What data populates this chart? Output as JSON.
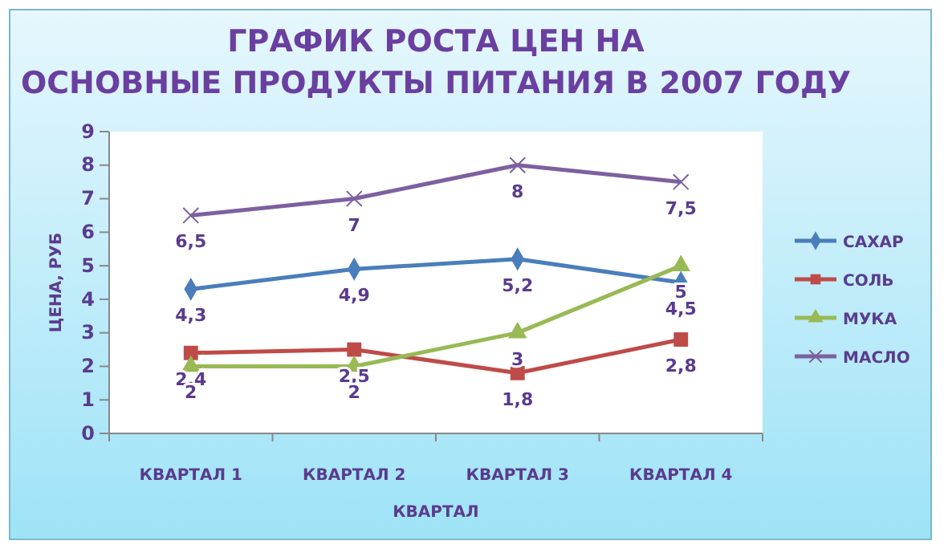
{
  "chart_data": {
    "type": "line",
    "title": "ГРАФИК РОСТА ЦЕН НА ОСНОВНЫЕ ПРОДУКТЫ ПИТАНИЯ В 2007 ГОДУ",
    "xlabel": "КВАРТАЛ",
    "ylabel": "ЦЕНА, РУБ",
    "categories": [
      "КВАРТАЛ 1",
      "КВАРТАЛ 2",
      "КВАРТАЛ 3",
      "КВАРТАЛ 4"
    ],
    "ylim": [
      0,
      9
    ],
    "yticks": [
      0,
      1,
      2,
      3,
      4,
      5,
      6,
      7,
      8,
      9
    ],
    "grid": false,
    "legend": "right",
    "series": [
      {
        "name": "САХАР",
        "color": "#4a7ebb",
        "marker": "diamond",
        "values": [
          4.3,
          4.9,
          5.2,
          4.5
        ],
        "value_labels": [
          "4,3",
          "4,9",
          "5,2",
          "4,5"
        ]
      },
      {
        "name": "СОЛЬ",
        "color": "#be4b48",
        "marker": "square",
        "values": [
          2.4,
          2.5,
          1.8,
          2.8
        ],
        "value_labels": [
          "2,4",
          "2,5",
          "1,8",
          "2,8"
        ]
      },
      {
        "name": "МУКА",
        "color": "#98b954",
        "marker": "triangle",
        "values": [
          2,
          2,
          3,
          5
        ],
        "value_labels": [
          "2",
          "2",
          "3",
          "5"
        ]
      },
      {
        "name": "МАСЛО",
        "color": "#7d60a0",
        "marker": "cross",
        "values": [
          6.5,
          7,
          8,
          7.5
        ],
        "value_labels": [
          "6,5",
          "7",
          "8",
          "7,5"
        ]
      }
    ]
  }
}
